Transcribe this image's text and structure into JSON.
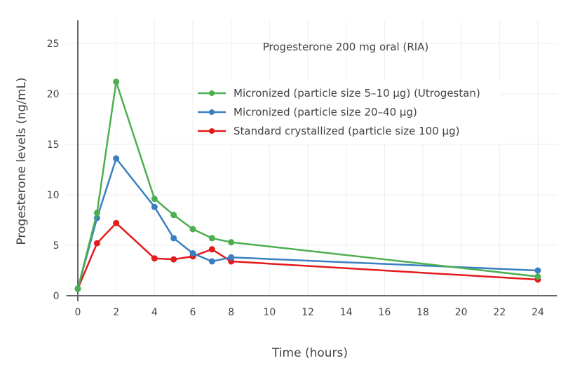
{
  "chart_data": {
    "type": "line",
    "title": "",
    "annotation": "Progesterone 200 mg oral (RIA)",
    "xlabel": "Time (hours)",
    "ylabel": "Progesterone levels (ng/mL)",
    "xlim": [
      -0.6,
      25
    ],
    "ylim": [
      -0.5,
      27.3
    ],
    "xticks": [
      0,
      2,
      4,
      6,
      8,
      10,
      12,
      14,
      16,
      18,
      20,
      22,
      24
    ],
    "yticks": [
      0,
      5,
      10,
      15,
      20,
      25
    ],
    "grid": true,
    "legend_position": "top-right",
    "x": [
      0,
      1,
      2,
      4,
      5,
      6,
      7,
      8,
      24
    ],
    "series": [
      {
        "name": "Micronized (particle size 5–10 µg) (Utrogestan)",
        "color": "#4caf50",
        "values": [
          0.7,
          8.2,
          21.2,
          9.6,
          8.0,
          6.6,
          5.7,
          5.3,
          1.9
        ]
      },
      {
        "name": "Micronized (particle size 20–40 µg)",
        "color": "#3a7fc1",
        "values": [
          0.7,
          7.7,
          13.6,
          8.8,
          5.7,
          4.2,
          3.4,
          3.8,
          2.5
        ]
      },
      {
        "name": "Standard crystallized (particle size 100 µg)",
        "color": "#e41a1c",
        "values": [
          0.7,
          5.2,
          7.2,
          3.7,
          3.6,
          3.9,
          4.6,
          3.4,
          1.6
        ]
      }
    ]
  }
}
